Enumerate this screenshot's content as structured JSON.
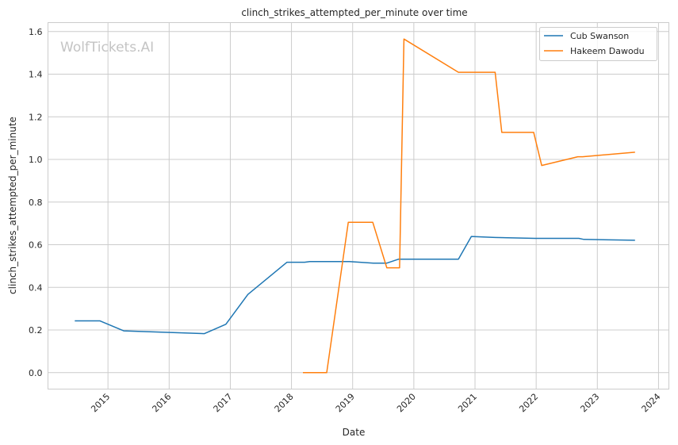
{
  "chart_data": {
    "type": "line",
    "title": "clinch_strikes_attempted_per_minute over time",
    "xlabel": "Date",
    "ylabel": "clinch_strikes_attempted_per_minute",
    "watermark": "WolfTickets.AI",
    "xlim": [
      "2014-01-08",
      "2024-03-03"
    ],
    "ylim": [
      -0.077,
      1.642
    ],
    "x_ticks": [
      "2015",
      "2016",
      "2017",
      "2018",
      "2019",
      "2020",
      "2021",
      "2022",
      "2023",
      "2024"
    ],
    "y_ticks": [
      "0.0",
      "0.2",
      "0.4",
      "0.6",
      "0.8",
      "1.0",
      "1.2",
      "1.4",
      "1.6"
    ],
    "grid": true,
    "legend_position": "top-right",
    "series": [
      {
        "name": "Cub Swanson",
        "color": "#1f77b4",
        "x": [
          "2014-06-17",
          "2014-11-14",
          "2015-04-05",
          "2016-07-30",
          "2016-12-05",
          "2017-04-16",
          "2017-12-05",
          "2018-03-20",
          "2018-04-20",
          "2018-12-13",
          "2019-05-05",
          "2019-07-24",
          "2019-10-01",
          "2020-09-24",
          "2020-12-10",
          "2021-05-01",
          "2021-12-25",
          "2022-09-13",
          "2022-10-12",
          "2023-08-14"
        ],
        "y": [
          0.243,
          0.243,
          0.196,
          0.183,
          0.227,
          0.367,
          0.518,
          0.518,
          0.521,
          0.521,
          0.514,
          0.514,
          0.532,
          0.532,
          0.639,
          0.634,
          0.63,
          0.63,
          0.625,
          0.621
        ]
      },
      {
        "name": "Hakeem Dawodu",
        "color": "#ff7f0e",
        "x": [
          "2018-03-10",
          "2018-07-30",
          "2018-12-06",
          "2019-05-01",
          "2019-07-24",
          "2019-10-08",
          "2019-11-03",
          "2020-09-24",
          "2021-05-01",
          "2021-06-10",
          "2021-12-17",
          "2022-02-03",
          "2022-09-06",
          "2022-10-05",
          "2023-08-14"
        ],
        "y": [
          0.0,
          0.0,
          0.705,
          0.705,
          0.492,
          0.492,
          1.565,
          1.409,
          1.409,
          1.127,
          1.127,
          0.972,
          1.013,
          1.013,
          1.034
        ]
      }
    ]
  }
}
